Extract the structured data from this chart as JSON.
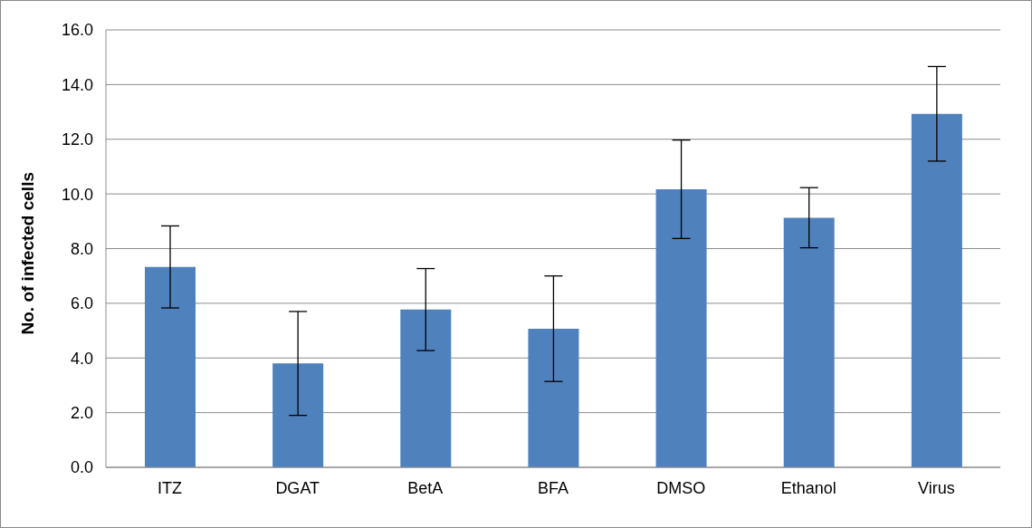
{
  "chart_data": {
    "type": "bar",
    "ylabel": "No. of infected cells",
    "categories": [
      "ITZ",
      "DGAT",
      "BetA",
      "BFA",
      "DMSO",
      "Ethanol",
      "Virus"
    ],
    "values": [
      7.33,
      3.8,
      5.77,
      5.07,
      10.17,
      9.13,
      12.93
    ],
    "errors": [
      1.5,
      1.9,
      1.5,
      1.93,
      1.8,
      1.1,
      1.73
    ],
    "color": "#4f81bd",
    "ylim": [
      0,
      16
    ],
    "yticks": [
      {
        "value": 0,
        "label": "0.0"
      },
      {
        "value": 2,
        "label": "2.0"
      },
      {
        "value": 4,
        "label": "4.0"
      },
      {
        "value": 6,
        "label": "6.0"
      },
      {
        "value": 8,
        "label": "8.0"
      },
      {
        "value": 10,
        "label": "10.0"
      },
      {
        "value": 12,
        "label": "12.0"
      },
      {
        "value": 14,
        "label": "14.0"
      },
      {
        "value": 16,
        "label": "16.0"
      }
    ],
    "grid": "y"
  }
}
